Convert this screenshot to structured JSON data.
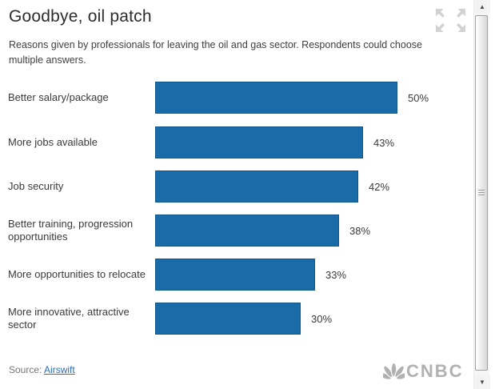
{
  "header": {
    "title": "Goodbye, oil patch",
    "subtitle": "Reasons given by professionals for leaving the oil and gas sector. Respondents could choose multiple answers."
  },
  "chart_data": {
    "type": "bar",
    "orientation": "horizontal",
    "title": "Goodbye, oil patch",
    "subtitle": "Reasons given by professionals for leaving the oil and gas sector. Respondents could choose multiple answers.",
    "categories": [
      "Better salary/package",
      "More jobs available",
      "Job security",
      "Better training, progression opportunities",
      "More opportunities to relocate",
      "More innovative, attractive sector"
    ],
    "values": [
      50,
      43,
      42,
      38,
      33,
      30
    ],
    "value_labels": [
      "50%",
      "43%",
      "42%",
      "38%",
      "33%",
      "30%"
    ],
    "unit": "%",
    "xlim": [
      0,
      50
    ],
    "grid": false,
    "legend": false,
    "bar_color": "#1a6ca8",
    "bar_border_color": "#11568a"
  },
  "footer": {
    "source_prefix": "Source: ",
    "source_link": "Airswift"
  },
  "branding": {
    "logo_text": "CNBC",
    "logo_color": "#b1b1b1"
  },
  "icons": {
    "expand": "four-outward-arrows",
    "peacock": "cnbc-peacock",
    "scrollbar_up": "▲",
    "scrollbar_down": "▼"
  },
  "colors": {
    "accent_blue": "#1a6ca8",
    "link_blue": "#2a6db5",
    "logo_gray": "#b1b1b1",
    "icon_gray": "#d2d2d2"
  }
}
